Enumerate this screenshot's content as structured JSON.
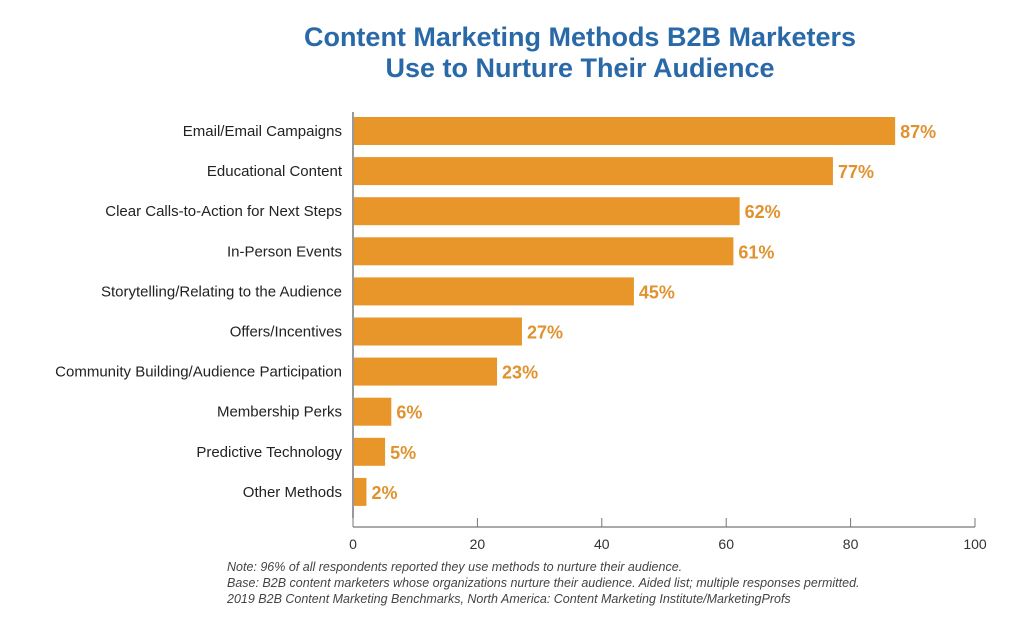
{
  "chart_data": {
    "type": "bar",
    "orientation": "horizontal",
    "title": [
      "Content Marketing Methods B2B Marketers",
      "Use to Nurture Their Audience"
    ],
    "categories": [
      "Email/Email Campaigns",
      "Educational Content",
      "Clear Calls-to-Action for Next Steps",
      "In-Person Events",
      "Storytelling/Relating to the Audience",
      "Offers/Incentives",
      "Community Building/Audience Participation",
      "Membership Perks",
      "Predictive Technology",
      "Other Methods"
    ],
    "values": [
      87,
      77,
      62,
      61,
      45,
      27,
      23,
      6,
      5,
      2
    ],
    "data_labels": [
      "87%",
      "77%",
      "62%",
      "61%",
      "45%",
      "27%",
      "23%",
      "6%",
      "5%",
      "2%"
    ],
    "xlim": [
      0,
      100
    ],
    "xticks": [
      "0",
      "20",
      "40",
      "60",
      "80",
      "100"
    ],
    "grid": false,
    "colors": {
      "bar": "#e8962a",
      "label": "#e0922e",
      "title": "#2a69a8"
    }
  },
  "notes": [
    "Note: 96% of all respondents reported they use methods to nurture their audience.",
    "Base: B2B content marketers whose organizations nurture their audience. Aided list; multiple responses permitted.",
    "2019 B2B Content Marketing Benchmarks, North America: Content Marketing Institute/MarketingProfs"
  ]
}
